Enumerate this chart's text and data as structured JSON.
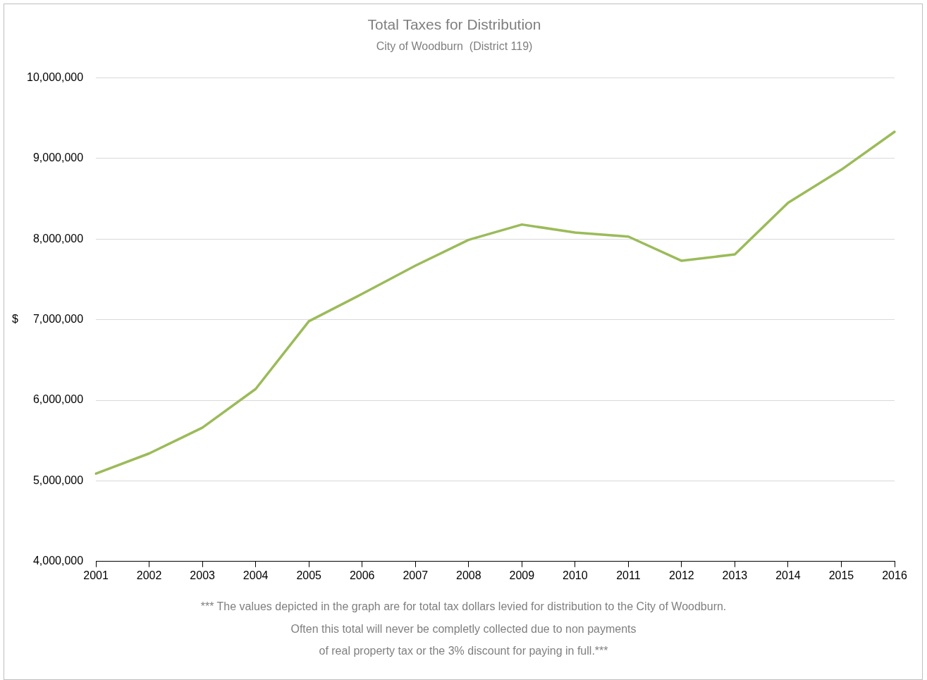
{
  "chart_data": {
    "type": "line",
    "title": "Total Taxes for Distribution",
    "subtitle": "City of Woodburn  (District 119)",
    "ylabel": "$",
    "categories": [
      "2001",
      "2002",
      "2003",
      "2004",
      "2005",
      "2006",
      "2007",
      "2008",
      "2009",
      "2010",
      "2011",
      "2012",
      "2013",
      "2014",
      "2015",
      "2016"
    ],
    "series": [
      {
        "color": "#9bbb59",
        "values": [
          5090000,
          5340000,
          5660000,
          6140000,
          6980000,
          7320000,
          7670000,
          7990000,
          8180000,
          8080000,
          8030000,
          7730000,
          7810000,
          8450000,
          8860000,
          9330000
        ]
      }
    ],
    "ylim": [
      4000000,
      10000000
    ],
    "yticks": [
      {
        "value": 4000000,
        "label": "4,000,000"
      },
      {
        "value": 5000000,
        "label": "5,000,000"
      },
      {
        "value": 6000000,
        "label": "6,000,000"
      },
      {
        "value": 7000000,
        "label": "7,000,000"
      },
      {
        "value": 8000000,
        "label": "8,000,000"
      },
      {
        "value": 9000000,
        "label": "9,000,000"
      },
      {
        "value": 10000000,
        "label": "10,000,000"
      }
    ],
    "grid": "y",
    "legend": false,
    "marker": "none",
    "line_style": "solid",
    "annotations": [
      "*** The values depicted in the graph are for total tax dollars levied for distribution to the City of Woodburn.",
      "Often this total will never be completly collected due to non payments",
      "of real property tax or the 3% discount for paying in full.***"
    ]
  }
}
